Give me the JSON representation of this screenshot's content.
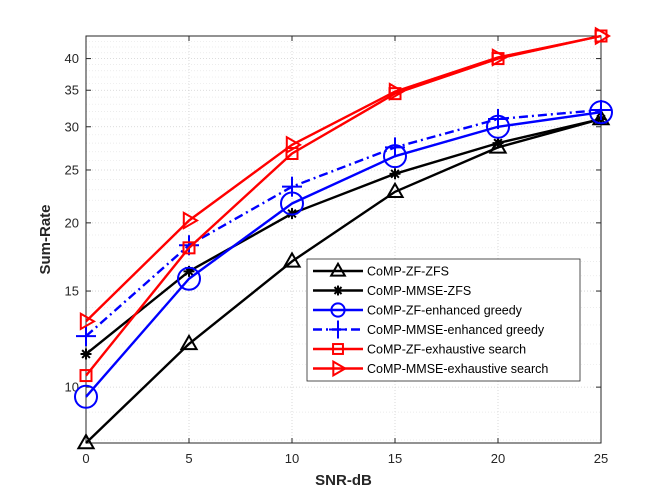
{
  "chart_data": {
    "type": "line",
    "xlabel": "SNR-dB",
    "ylabel": "Sum-Rate",
    "x": [
      0,
      5,
      10,
      15,
      20,
      25
    ],
    "xticks": [
      0,
      5,
      10,
      15,
      20,
      25
    ],
    "xlim": [
      0,
      25
    ],
    "yscale": "log",
    "ylim": [
      7.9,
      44
    ],
    "yticks": [
      10,
      15,
      20,
      25,
      30,
      35,
      40
    ],
    "grid": true,
    "minor_grid": true,
    "legend_position": "lower-right",
    "series": [
      {
        "name": "CoMP-ZF-ZFS",
        "values": [
          7.9,
          12.0,
          17.0,
          22.8,
          27.5,
          31.0
        ],
        "color": "#000000",
        "dash": "solid",
        "marker": "triangle-up"
      },
      {
        "name": "CoMP-MMSE-ZFS",
        "values": [
          11.5,
          16.3,
          20.8,
          24.6,
          28.0,
          31.0
        ],
        "color": "#000000",
        "dash": "solid",
        "marker": "star"
      },
      {
        "name": "CoMP-ZF-enhanced greedy",
        "values": [
          9.6,
          15.8,
          21.7,
          26.5,
          30.0,
          31.9
        ],
        "color": "#0000ff",
        "dash": "solid",
        "marker": "circle"
      },
      {
        "name": "CoMP-MMSE-enhanced greedy",
        "values": [
          12.4,
          18.2,
          23.3,
          27.5,
          31.0,
          32.2
        ],
        "color": "#0000ff",
        "dash": "dashdot",
        "marker": "plus"
      },
      {
        "name": "CoMP-ZF-exhaustive search",
        "values": [
          10.5,
          18.0,
          26.8,
          34.5,
          40.0,
          44.0
        ],
        "color": "#ff0000",
        "dash": "solid",
        "marker": "square"
      },
      {
        "name": "CoMP-MMSE-exhaustive search",
        "values": [
          13.2,
          20.2,
          27.8,
          34.8,
          40.2,
          44.0
        ],
        "color": "#ff0000",
        "dash": "solid",
        "marker": "triangle-right"
      }
    ]
  }
}
